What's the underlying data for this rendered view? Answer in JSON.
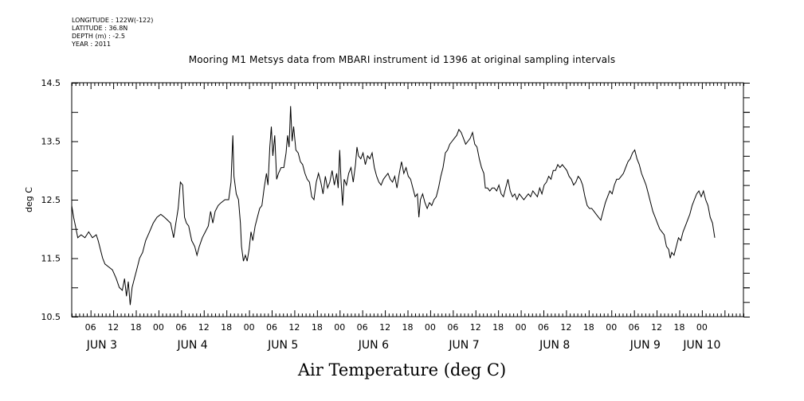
{
  "meta": {
    "lines": [
      "LONGITUDE : 122W(-122)",
      "LATITUDE : 36.8N",
      "DEPTH (m) : -2.5",
      "YEAR : 2011"
    ]
  },
  "chart_data": {
    "type": "line",
    "title": "Mooring M1 Metsys data from MBARI instrument id 1396 at original sampling intervals",
    "xlabel": "Air Temperature (deg C)",
    "ylabel": "deg C",
    "ylim": [
      10.5,
      14.5
    ],
    "yticks": [
      "10.5",
      "11.5",
      "12.5",
      "13.5",
      "14.5"
    ],
    "x_unit": "hours since JUN 3 00:00 (2011)",
    "xlim": [
      1,
      179
    ],
    "hour_tick_labels": [
      "06",
      "12",
      "18",
      "00",
      "06",
      "12",
      "18",
      "00",
      "06",
      "12",
      "18",
      "00",
      "06",
      "12",
      "18",
      "00",
      "06",
      "12",
      "18",
      "00",
      "06",
      "12",
      "18",
      "00",
      "06",
      "12",
      "18",
      "00"
    ],
    "hour_tick_values": [
      6,
      12,
      18,
      24,
      30,
      36,
      42,
      48,
      54,
      60,
      66,
      72,
      78,
      84,
      90,
      96,
      102,
      108,
      114,
      120,
      126,
      132,
      138,
      144,
      150,
      156,
      162,
      168
    ],
    "day_labels": [
      "JUN  3",
      "JUN  4",
      "JUN  5",
      "JUN  6",
      "JUN  7",
      "JUN  8",
      "JUN  9",
      "JUN 10"
    ],
    "day_label_hours": [
      9,
      33,
      57,
      81,
      105,
      129,
      153,
      168
    ],
    "grid": false,
    "series": [
      {
        "values": [
          [
            1,
            12.4
          ],
          [
            1.5,
            12.2
          ],
          [
            2,
            12.05
          ],
          [
            2.6,
            11.85
          ],
          [
            3.5,
            11.9
          ],
          [
            4.5,
            11.85
          ],
          [
            5.5,
            11.95
          ],
          [
            6.5,
            11.85
          ],
          [
            7.5,
            11.9
          ],
          [
            8,
            11.8
          ],
          [
            8.6,
            11.65
          ],
          [
            9.2,
            11.5
          ],
          [
            9.8,
            11.4
          ],
          [
            10.8,
            11.35
          ],
          [
            11.8,
            11.3
          ],
          [
            12.8,
            11.15
          ],
          [
            13.6,
            11.0
          ],
          [
            14.4,
            10.95
          ],
          [
            15.0,
            11.15
          ],
          [
            15.5,
            10.85
          ],
          [
            16,
            11.1
          ],
          [
            16.5,
            10.7
          ],
          [
            17.0,
            11.0
          ],
          [
            17.6,
            11.15
          ],
          [
            18.2,
            11.3
          ],
          [
            19.0,
            11.5
          ],
          [
            19.8,
            11.6
          ],
          [
            20.6,
            11.8
          ],
          [
            21.6,
            11.95
          ],
          [
            22.6,
            12.1
          ],
          [
            23.6,
            12.2
          ],
          [
            24.6,
            12.25
          ],
          [
            25.6,
            12.2
          ],
          [
            26.4,
            12.15
          ],
          [
            27.2,
            12.1
          ],
          [
            28.0,
            11.85
          ],
          [
            28.6,
            12.1
          ],
          [
            29.2,
            12.35
          ],
          [
            29.8,
            12.8
          ],
          [
            30.4,
            12.75
          ],
          [
            30.9,
            12.2
          ],
          [
            31.4,
            12.1
          ],
          [
            32.0,
            12.05
          ],
          [
            32.8,
            11.8
          ],
          [
            33.6,
            11.7
          ],
          [
            34.2,
            11.55
          ],
          [
            34.8,
            11.7
          ],
          [
            35.6,
            11.85
          ],
          [
            36.4,
            11.95
          ],
          [
            37.2,
            12.05
          ],
          [
            37.8,
            12.3
          ],
          [
            38.4,
            12.1
          ],
          [
            39.0,
            12.3
          ],
          [
            39.8,
            12.4
          ],
          [
            40.6,
            12.45
          ],
          [
            41.6,
            12.5
          ],
          [
            42.6,
            12.5
          ],
          [
            43.2,
            12.8
          ],
          [
            43.7,
            13.6
          ],
          [
            44.0,
            12.9
          ],
          [
            44.6,
            12.6
          ],
          [
            45.2,
            12.5
          ],
          [
            45.7,
            12.1
          ],
          [
            46.0,
            11.7
          ],
          [
            46.5,
            11.45
          ],
          [
            47.0,
            11.55
          ],
          [
            47.5,
            11.45
          ],
          [
            48.0,
            11.65
          ],
          [
            48.5,
            11.95
          ],
          [
            49.0,
            11.8
          ],
          [
            49.6,
            12.05
          ],
          [
            50.2,
            12.2
          ],
          [
            50.8,
            12.35
          ],
          [
            51.4,
            12.4
          ],
          [
            52.0,
            12.7
          ],
          [
            52.6,
            12.95
          ],
          [
            53.0,
            12.75
          ],
          [
            53.5,
            13.4
          ],
          [
            53.9,
            13.75
          ],
          [
            54.3,
            13.25
          ],
          [
            54.8,
            13.6
          ],
          [
            55.3,
            12.85
          ],
          [
            55.8,
            12.95
          ],
          [
            56.5,
            13.05
          ],
          [
            57.2,
            13.05
          ],
          [
            57.8,
            13.3
          ],
          [
            58.2,
            13.6
          ],
          [
            58.6,
            13.4
          ],
          [
            59.0,
            14.1
          ],
          [
            59.4,
            13.5
          ],
          [
            59.8,
            13.75
          ],
          [
            60.4,
            13.35
          ],
          [
            61.0,
            13.3
          ],
          [
            61.6,
            13.15
          ],
          [
            62.2,
            13.1
          ],
          [
            62.8,
            12.95
          ],
          [
            63.4,
            12.85
          ],
          [
            64.0,
            12.8
          ],
          [
            64.6,
            12.55
          ],
          [
            65.2,
            12.5
          ],
          [
            65.8,
            12.8
          ],
          [
            66.4,
            12.95
          ],
          [
            67.0,
            12.8
          ],
          [
            67.6,
            12.6
          ],
          [
            68.2,
            12.9
          ],
          [
            68.8,
            12.7
          ],
          [
            69.4,
            12.8
          ],
          [
            70.0,
            13.0
          ],
          [
            70.6,
            12.75
          ],
          [
            71.2,
            12.95
          ],
          [
            71.6,
            12.7
          ],
          [
            72.0,
            13.35
          ],
          [
            72.4,
            12.8
          ],
          [
            72.8,
            12.4
          ],
          [
            73.2,
            12.85
          ],
          [
            73.8,
            12.75
          ],
          [
            74.4,
            12.95
          ],
          [
            75.0,
            13.05
          ],
          [
            75.6,
            12.8
          ],
          [
            76.2,
            13.1
          ],
          [
            76.6,
            13.4
          ],
          [
            77.0,
            13.25
          ],
          [
            77.6,
            13.2
          ],
          [
            78.2,
            13.3
          ],
          [
            78.8,
            13.1
          ],
          [
            79.4,
            13.25
          ],
          [
            80.0,
            13.2
          ],
          [
            80.6,
            13.3
          ],
          [
            81.2,
            13.05
          ],
          [
            81.8,
            12.9
          ],
          [
            82.4,
            12.8
          ],
          [
            83.0,
            12.75
          ],
          [
            83.6,
            12.85
          ],
          [
            84.2,
            12.9
          ],
          [
            84.8,
            12.95
          ],
          [
            85.4,
            12.85
          ],
          [
            86.0,
            12.8
          ],
          [
            86.6,
            12.9
          ],
          [
            87.2,
            12.7
          ],
          [
            87.8,
            12.95
          ],
          [
            88.4,
            13.15
          ],
          [
            89.0,
            12.95
          ],
          [
            89.6,
            13.05
          ],
          [
            90.2,
            12.9
          ],
          [
            90.8,
            12.85
          ],
          [
            91.4,
            12.7
          ],
          [
            92.0,
            12.55
          ],
          [
            92.6,
            12.6
          ],
          [
            93.0,
            12.2
          ],
          [
            93.4,
            12.5
          ],
          [
            94.0,
            12.6
          ],
          [
            94.6,
            12.45
          ],
          [
            95.2,
            12.35
          ],
          [
            95.8,
            12.45
          ],
          [
            96.4,
            12.4
          ],
          [
            97.0,
            12.5
          ],
          [
            97.6,
            12.55
          ],
          [
            98.2,
            12.7
          ],
          [
            98.8,
            12.9
          ],
          [
            99.4,
            13.05
          ],
          [
            100.0,
            13.3
          ],
          [
            100.6,
            13.35
          ],
          [
            101.2,
            13.45
          ],
          [
            101.8,
            13.5
          ],
          [
            102.4,
            13.55
          ],
          [
            103.0,
            13.6
          ],
          [
            103.6,
            13.7
          ],
          [
            104.2,
            13.65
          ],
          [
            104.8,
            13.55
          ],
          [
            105.4,
            13.45
          ],
          [
            106.0,
            13.5
          ],
          [
            106.6,
            13.55
          ],
          [
            107.2,
            13.65
          ],
          [
            107.8,
            13.45
          ],
          [
            108.4,
            13.4
          ],
          [
            109.0,
            13.2
          ],
          [
            109.6,
            13.05
          ],
          [
            110.2,
            12.95
          ],
          [
            110.6,
            12.7
          ],
          [
            111.2,
            12.7
          ],
          [
            111.8,
            12.65
          ],
          [
            112.4,
            12.7
          ],
          [
            113.0,
            12.7
          ],
          [
            113.6,
            12.65
          ],
          [
            114.2,
            12.75
          ],
          [
            114.8,
            12.6
          ],
          [
            115.4,
            12.55
          ],
          [
            116.0,
            12.7
          ],
          [
            116.6,
            12.85
          ],
          [
            117.2,
            12.65
          ],
          [
            117.8,
            12.55
          ],
          [
            118.4,
            12.6
          ],
          [
            119.0,
            12.5
          ],
          [
            119.6,
            12.6
          ],
          [
            120.2,
            12.55
          ],
          [
            120.8,
            12.5
          ],
          [
            121.4,
            12.55
          ],
          [
            122.0,
            12.6
          ],
          [
            122.6,
            12.55
          ],
          [
            123.2,
            12.65
          ],
          [
            123.8,
            12.6
          ],
          [
            124.4,
            12.55
          ],
          [
            125.0,
            12.7
          ],
          [
            125.6,
            12.6
          ],
          [
            126.2,
            12.75
          ],
          [
            126.8,
            12.8
          ],
          [
            127.4,
            12.9
          ],
          [
            128.0,
            12.85
          ],
          [
            128.6,
            13.0
          ],
          [
            129.2,
            13.0
          ],
          [
            129.8,
            13.1
          ],
          [
            130.4,
            13.05
          ],
          [
            131.0,
            13.1
          ],
          [
            131.6,
            13.05
          ],
          [
            132.2,
            13.0
          ],
          [
            132.8,
            12.9
          ],
          [
            133.4,
            12.85
          ],
          [
            134.0,
            12.75
          ],
          [
            134.6,
            12.8
          ],
          [
            135.2,
            12.9
          ],
          [
            135.8,
            12.85
          ],
          [
            136.4,
            12.75
          ],
          [
            137.0,
            12.55
          ],
          [
            137.6,
            12.4
          ],
          [
            138.2,
            12.35
          ],
          [
            138.8,
            12.35
          ],
          [
            139.4,
            12.3
          ],
          [
            140.0,
            12.25
          ],
          [
            140.6,
            12.2
          ],
          [
            141.2,
            12.15
          ],
          [
            141.8,
            12.3
          ],
          [
            142.4,
            12.45
          ],
          [
            143.0,
            12.55
          ],
          [
            143.6,
            12.65
          ],
          [
            144.2,
            12.6
          ],
          [
            144.8,
            12.75
          ],
          [
            145.4,
            12.85
          ],
          [
            146.0,
            12.85
          ],
          [
            146.6,
            12.9
          ],
          [
            147.2,
            12.95
          ],
          [
            147.8,
            13.05
          ],
          [
            148.4,
            13.15
          ],
          [
            149.0,
            13.2
          ],
          [
            149.6,
            13.3
          ],
          [
            150.2,
            13.35
          ],
          [
            150.8,
            13.2
          ],
          [
            151.4,
            13.1
          ],
          [
            152.0,
            12.95
          ],
          [
            152.6,
            12.85
          ],
          [
            153.2,
            12.75
          ],
          [
            153.8,
            12.6
          ],
          [
            154.4,
            12.45
          ],
          [
            155.0,
            12.3
          ],
          [
            155.6,
            12.2
          ],
          [
            156.2,
            12.1
          ],
          [
            156.8,
            12.0
          ],
          [
            157.4,
            11.95
          ],
          [
            158.0,
            11.9
          ],
          [
            158.6,
            11.7
          ],
          [
            159.2,
            11.65
          ],
          [
            159.6,
            11.5
          ],
          [
            160.0,
            11.6
          ],
          [
            160.6,
            11.55
          ],
          [
            161.2,
            11.7
          ],
          [
            161.8,
            11.85
          ],
          [
            162.4,
            11.8
          ],
          [
            163.0,
            11.95
          ],
          [
            163.6,
            12.05
          ],
          [
            164.2,
            12.15
          ],
          [
            164.8,
            12.25
          ],
          [
            165.4,
            12.4
          ],
          [
            166.0,
            12.5
          ],
          [
            166.6,
            12.6
          ],
          [
            167.2,
            12.65
          ],
          [
            167.8,
            12.55
          ],
          [
            168.4,
            12.65
          ],
          [
            169.0,
            12.5
          ],
          [
            169.6,
            12.4
          ],
          [
            170.2,
            12.2
          ],
          [
            170.8,
            12.1
          ],
          [
            171.4,
            11.85
          ]
        ]
      }
    ]
  }
}
